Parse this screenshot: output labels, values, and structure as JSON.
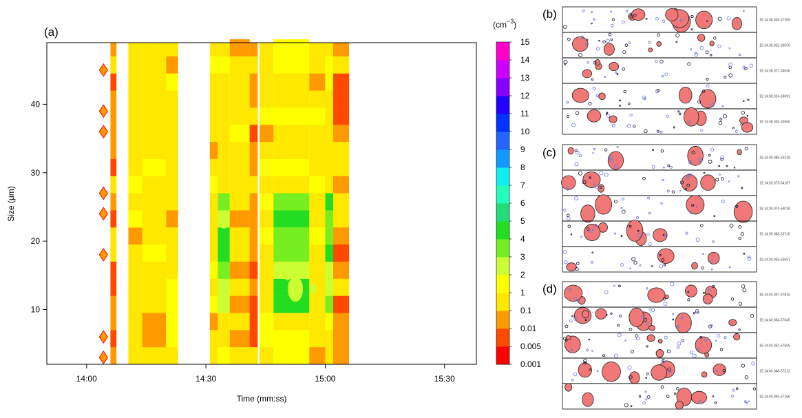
{
  "panel_labels": {
    "a": "(a)",
    "b": "(b)",
    "c": "(c)",
    "d": "(d)"
  },
  "colorbar": {
    "unit_prefix": "(cm",
    "unit_exp": "−3",
    "unit_suffix": ")",
    "levels": [
      {
        "label": "0.001",
        "color": "#ff0000"
      },
      {
        "label": "0.005",
        "color": "#ff4800"
      },
      {
        "label": "0.01",
        "color": "#ff9900"
      },
      {
        "label": "0.1",
        "color": "#ffe800"
      },
      {
        "label": "1",
        "color": "#ffff00"
      },
      {
        "label": "2",
        "color": "#ccff33"
      },
      {
        "label": "3",
        "color": "#77ee22"
      },
      {
        "label": "4",
        "color": "#22dd22"
      },
      {
        "label": "5",
        "color": "#22dd77"
      },
      {
        "label": "6",
        "color": "#22ffbb"
      },
      {
        "label": "7",
        "color": "#11eeee"
      },
      {
        "label": "8",
        "color": "#1199ff"
      },
      {
        "label": "9",
        "color": "#2266ff"
      },
      {
        "label": "10",
        "color": "#0033ff"
      },
      {
        "label": "11",
        "color": "#2200ff"
      },
      {
        "label": "12",
        "color": "#8800ff"
      },
      {
        "label": "13",
        "color": "#cc00ff"
      },
      {
        "label": "14",
        "color": "#ff00cc"
      },
      {
        "label": "15",
        "color": "#ff0099"
      }
    ],
    "tick_labels": [
      "0.001",
      "0.005",
      "0.01",
      "0.1",
      "1",
      "2",
      "3",
      "4",
      "5",
      "6",
      "7",
      "8",
      "9",
      "10",
      "11",
      "12",
      "13",
      "14",
      "15"
    ]
  },
  "chart_data": {
    "type": "heatmap",
    "title": "",
    "xlabel": "Time (mm:ss)",
    "ylabel_prefix": "Size (",
    "ylabel_mu": "μ",
    "ylabel_suffix": "m)",
    "x_tick_labels": [
      "14:00",
      "14:30",
      "15:00",
      "15:30"
    ],
    "x_ticks_minutes": [
      0,
      30,
      60,
      90
    ],
    "xlim_minutes": [
      -10,
      98
    ],
    "y_ticks": [
      10,
      20,
      30,
      40
    ],
    "ylim": [
      2,
      49
    ],
    "columns": [
      {
        "t": 3.5,
        "t_end": 5.0,
        "profile": "sparse"
      },
      {
        "t": 6.0,
        "t_end": 7.5,
        "profile": "orange"
      },
      {
        "t": 10.5,
        "t_end": 14.0,
        "profile": "yellow"
      },
      {
        "t": 14.0,
        "t_end": 20.0,
        "profile": "yellow"
      },
      {
        "t": 20.0,
        "t_end": 23.0,
        "profile": "yellow"
      },
      {
        "t": 31.0,
        "t_end": 33.0,
        "profile": "yellow"
      },
      {
        "t": 33.0,
        "t_end": 36.0,
        "profile": "green"
      },
      {
        "t": 36.0,
        "t_end": 41.0,
        "profile": "yellow"
      },
      {
        "t": 41.0,
        "t_end": 43.0,
        "profile": "orange"
      },
      {
        "t": 43.5,
        "t_end": 47.0,
        "profile": "yellow"
      },
      {
        "t": 47.0,
        "t_end": 56.0,
        "profile": "green"
      },
      {
        "t": 56.0,
        "t_end": 60.0,
        "profile": "yellow"
      },
      {
        "t": 60.0,
        "t_end": 62.0,
        "profile": "green"
      },
      {
        "t": 62.0,
        "t_end": 66.0,
        "profile": "orange"
      }
    ],
    "hotspots": [
      {
        "t": 34.5,
        "size": 23,
        "level": 9
      },
      {
        "t": 52.5,
        "size": 13,
        "level": 12
      },
      {
        "t": 50.5,
        "size": 15,
        "level": 7
      },
      {
        "t": 57.0,
        "size": 13,
        "level": 7
      }
    ]
  },
  "images": {
    "b": [
      "15:14:38.035-37269",
      "15:14:38.032-36050",
      "15:14:38.027-34646",
      "15:14:38.024-33691",
      "15:14:38.020-33506"
    ],
    "c": [
      "15:14:39.085-54318",
      "15:14:39.079-54167",
      "15:14:39.074-54016",
      "15:14:39.068-53720",
      "15:14:39.063-53551"
    ],
    "d": [
      "15:14:40.057-57815",
      "15:14:40.054-57645",
      "15:14:40.051-57505",
      "15:14:40.048-57312",
      "15:14:40.045-57166"
    ]
  }
}
